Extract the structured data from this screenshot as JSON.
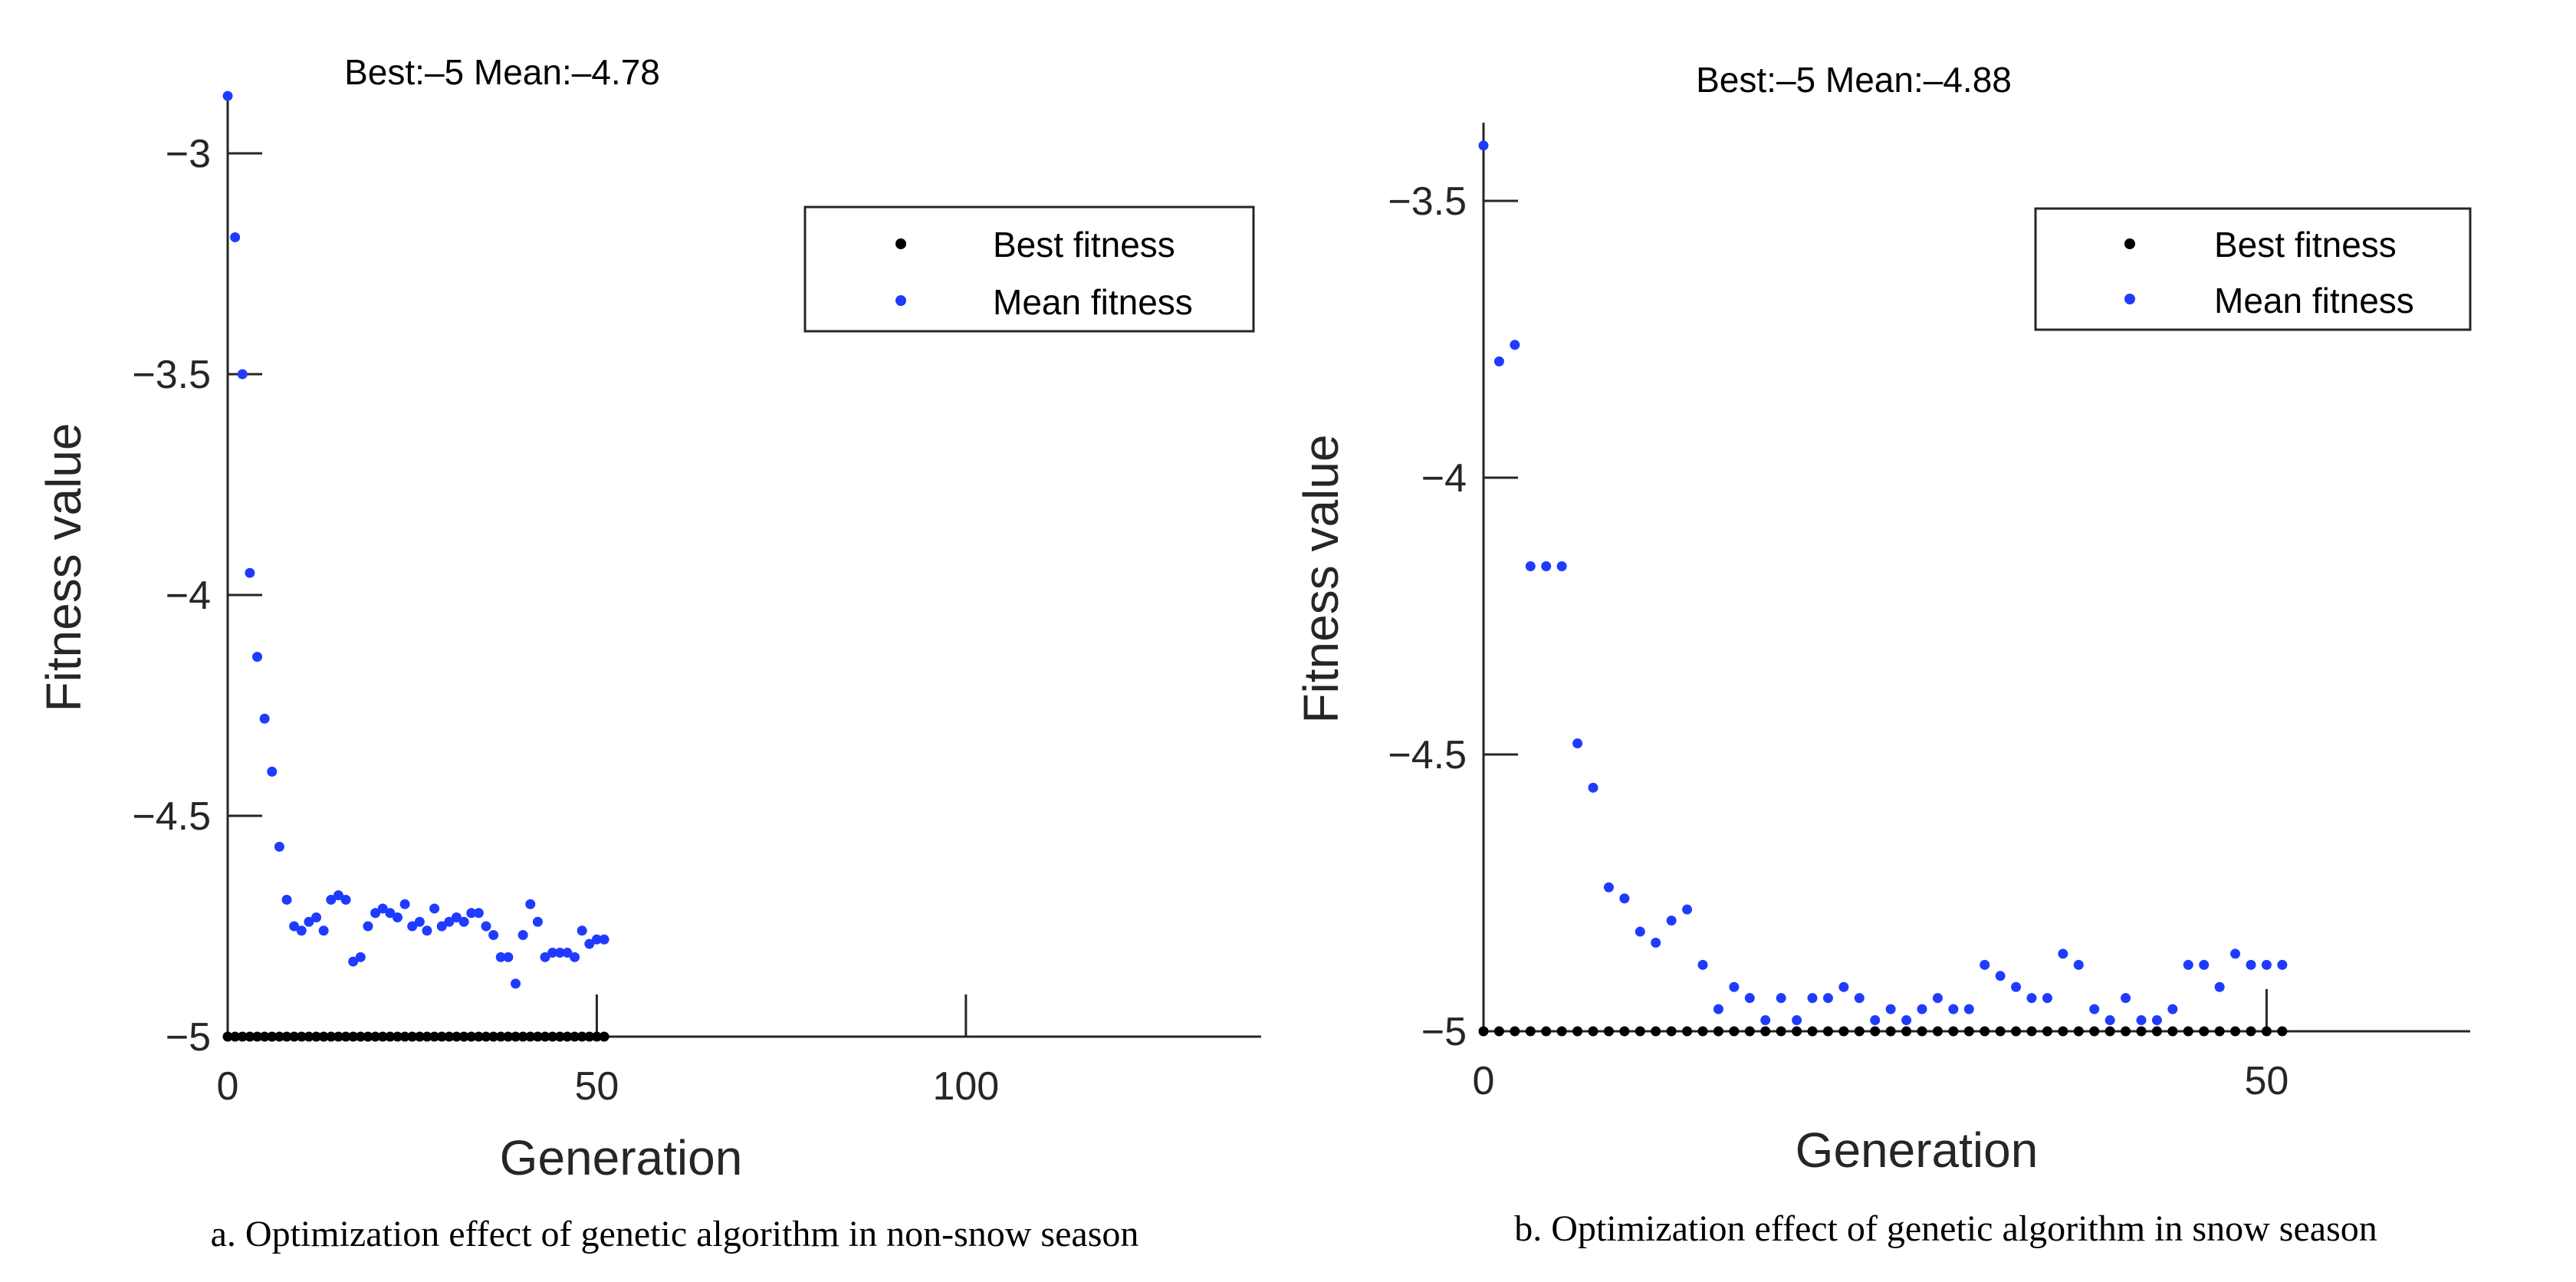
{
  "chart_data": [
    {
      "type": "scatter",
      "title": "Best:–5 Mean:–4.78",
      "xlabel": "Generation",
      "ylabel": "Fitness value",
      "xlim": [
        0,
        140
      ],
      "ylim": [
        -5,
        -2.8
      ],
      "xticks": [
        0,
        50,
        100
      ],
      "xtick_labels": [
        "0",
        "50",
        "100"
      ],
      "yticks": [
        -3,
        -3.5,
        -4,
        -4.5,
        -5
      ],
      "ytick_labels": [
        "−3",
        "−3.5",
        "−4",
        "−4.5",
        "−5"
      ],
      "legend": [
        "Best fitness",
        "Mean fitness"
      ],
      "legend_position": "top-right",
      "caption": "a. Optimization effect of genetic algorithm in non-snow season",
      "series": [
        {
          "name": "Best fitness",
          "color": "#000000",
          "x": [
            0,
            1,
            2,
            3,
            4,
            5,
            6,
            7,
            8,
            9,
            10,
            11,
            12,
            13,
            14,
            15,
            16,
            17,
            18,
            19,
            20,
            21,
            22,
            23,
            24,
            25,
            26,
            27,
            28,
            29,
            30,
            31,
            32,
            33,
            34,
            35,
            36,
            37,
            38,
            39,
            40,
            41,
            42,
            43,
            44,
            45,
            46,
            47,
            48,
            49,
            50,
            51
          ],
          "values": [
            -5,
            -5,
            -5,
            -5,
            -5,
            -5,
            -5,
            -5,
            -5,
            -5,
            -5,
            -5,
            -5,
            -5,
            -5,
            -5,
            -5,
            -5,
            -5,
            -5,
            -5,
            -5,
            -5,
            -5,
            -5,
            -5,
            -5,
            -5,
            -5,
            -5,
            -5,
            -5,
            -5,
            -5,
            -5,
            -5,
            -5,
            -5,
            -5,
            -5,
            -5,
            -5,
            -5,
            -5,
            -5,
            -5,
            -5,
            -5,
            -5,
            -5,
            -5,
            -5
          ]
        },
        {
          "name": "Mean fitness",
          "color": "#1f3bff",
          "x": [
            0,
            1,
            2,
            3,
            4,
            5,
            6,
            7,
            8,
            9,
            10,
            11,
            12,
            13,
            14,
            15,
            16,
            17,
            18,
            19,
            20,
            21,
            22,
            23,
            24,
            25,
            26,
            27,
            28,
            29,
            30,
            31,
            32,
            33,
            34,
            35,
            36,
            37,
            38,
            39,
            40,
            41,
            42,
            43,
            44,
            45,
            46,
            47,
            48,
            49,
            50,
            51
          ],
          "values": [
            -2.87,
            -3.19,
            -3.5,
            -3.95,
            -4.14,
            -4.28,
            -4.4,
            -4.57,
            -4.69,
            -4.75,
            -4.76,
            -4.74,
            -4.73,
            -4.76,
            -4.69,
            -4.68,
            -4.69,
            -4.83,
            -4.82,
            -4.75,
            -4.72,
            -4.71,
            -4.72,
            -4.73,
            -4.7,
            -4.75,
            -4.74,
            -4.76,
            -4.71,
            -4.75,
            -4.74,
            -4.73,
            -4.74,
            -4.72,
            -4.72,
            -4.75,
            -4.77,
            -4.82,
            -4.82,
            -4.88,
            -4.77,
            -4.7,
            -4.74,
            -4.82,
            -4.81,
            -4.81,
            -4.81,
            -4.82,
            -4.76,
            -4.79,
            -4.78,
            -4.78
          ]
        }
      ]
    },
    {
      "type": "scatter",
      "title": "Best:–5 Mean:–4.88",
      "xlabel": "Generation",
      "ylabel": "Fitness value",
      "xlim": [
        0,
        63
      ],
      "ylim": [
        -5,
        -3.35
      ],
      "xticks": [
        0,
        50
      ],
      "xtick_labels": [
        "0",
        "50"
      ],
      "yticks": [
        -3.5,
        -4,
        -4.5,
        -5
      ],
      "ytick_labels": [
        "−3.5",
        "−4",
        "−4.5",
        "−5"
      ],
      "legend": [
        "Best fitness",
        "Mean fitness"
      ],
      "legend_position": "top-right",
      "caption": "b. Optimization effect of genetic algorithm in snow season",
      "series": [
        {
          "name": "Best fitness",
          "color": "#000000",
          "x": [
            0,
            1,
            2,
            3,
            4,
            5,
            6,
            7,
            8,
            9,
            10,
            11,
            12,
            13,
            14,
            15,
            16,
            17,
            18,
            19,
            20,
            21,
            22,
            23,
            24,
            25,
            26,
            27,
            28,
            29,
            30,
            31,
            32,
            33,
            34,
            35,
            36,
            37,
            38,
            39,
            40,
            41,
            42,
            43,
            44,
            45,
            46,
            47,
            48,
            49,
            50,
            51
          ],
          "values": [
            -5,
            -5,
            -5,
            -5,
            -5,
            -5,
            -5,
            -5,
            -5,
            -5,
            -5,
            -5,
            -5,
            -5,
            -5,
            -5,
            -5,
            -5,
            -5,
            -5,
            -5,
            -5,
            -5,
            -5,
            -5,
            -5,
            -5,
            -5,
            -5,
            -5,
            -5,
            -5,
            -5,
            -5,
            -5,
            -5,
            -5,
            -5,
            -5,
            -5,
            -5,
            -5,
            -5,
            -5,
            -5,
            -5,
            -5,
            -5,
            -5,
            -5,
            -5,
            -5
          ]
        },
        {
          "name": "Mean fitness",
          "color": "#1f3bff",
          "x": [
            0,
            1,
            2,
            3,
            4,
            5,
            6,
            7,
            8,
            9,
            10,
            11,
            12,
            13,
            14,
            15,
            16,
            17,
            18,
            19,
            20,
            21,
            22,
            23,
            24,
            25,
            26,
            27,
            28,
            29,
            30,
            31,
            32,
            33,
            34,
            35,
            36,
            37,
            38,
            39,
            40,
            41,
            42,
            43,
            44,
            45,
            46,
            47,
            48,
            49,
            50,
            51
          ],
          "values": [
            -3.4,
            -3.79,
            -3.76,
            -4.16,
            -4.16,
            -4.16,
            -4.48,
            -4.56,
            -4.74,
            -4.76,
            -4.82,
            -4.84,
            -4.8,
            -4.78,
            -4.88,
            -4.96,
            -4.92,
            -4.94,
            -4.98,
            -4.94,
            -4.98,
            -4.94,
            -4.94,
            -4.92,
            -4.94,
            -4.98,
            -4.96,
            -4.98,
            -4.96,
            -4.94,
            -4.96,
            -4.96,
            -4.88,
            -4.9,
            -4.92,
            -4.94,
            -4.94,
            -4.86,
            -4.88,
            -4.96,
            -4.98,
            -4.94,
            -4.98,
            -4.98,
            -4.96,
            -4.88,
            -4.88,
            -4.92,
            -4.86,
            -4.88,
            -4.88,
            -4.88
          ]
        }
      ]
    }
  ]
}
